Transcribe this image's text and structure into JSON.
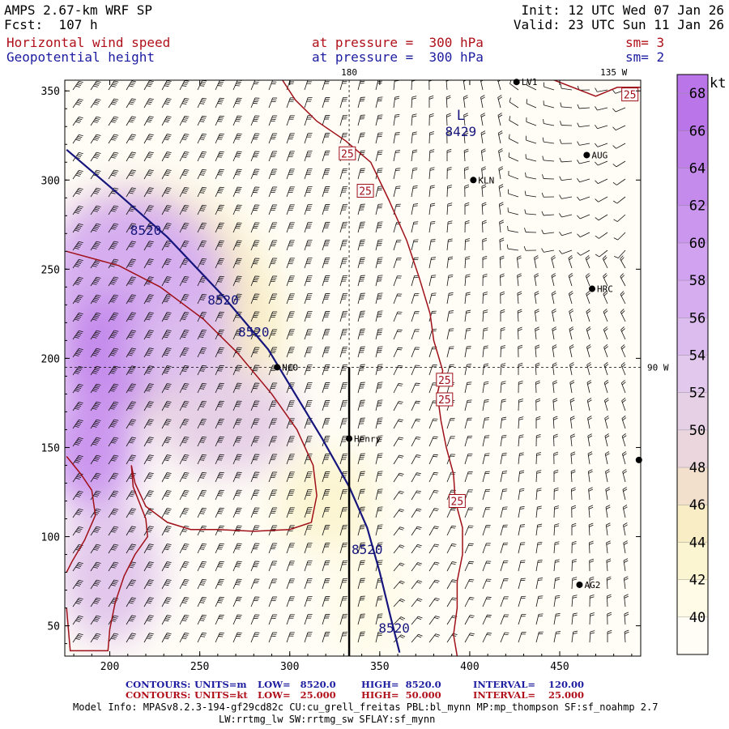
{
  "header": {
    "model_title": "AMPS 2.67-km WRF SP",
    "forecast": "Fcst:  107 h",
    "init": "Init: 12 UTC Wed 07 Jan 26",
    "valid": "Valid: 23 UTC Sun 11 Jan 26",
    "field1_name": "Horizontal wind speed",
    "field1_level": "at pressure =  300 hPa",
    "field1_sm": "sm= 3",
    "field2_name": "Geopotential height",
    "field2_level": "at pressure =  300 hPa",
    "field2_sm": "sm= 2"
  },
  "colors": {
    "height_contour": "#16167e",
    "speed_contour": "#a01018",
    "barb": "#111111",
    "marker": "#000000"
  },
  "chart_data": {
    "type": "contour-map",
    "x_ticks": [
      200,
      250,
      300,
      350,
      400,
      450
    ],
    "y_ticks": [
      50,
      100,
      150,
      200,
      250,
      300,
      350
    ],
    "xlim": [
      175,
      495
    ],
    "ylim": [
      33,
      356
    ],
    "meridian_labels": [
      {
        "text": "180",
        "x": 333,
        "y": 356,
        "edge": "top"
      },
      {
        "text": "135 W",
        "x": 480,
        "y": 356,
        "edge": "top"
      },
      {
        "text": "90 W",
        "x": 495,
        "y": 195,
        "edge": "right"
      }
    ],
    "stations": [
      {
        "name": "NCO",
        "x": 293,
        "y": 195
      },
      {
        "name": "Henry",
        "x": 333,
        "y": 155
      },
      {
        "name": "KLN",
        "x": 402,
        "y": 300
      },
      {
        "name": "AUG",
        "x": 465,
        "y": 314
      },
      {
        "name": "HRC",
        "x": 468,
        "y": 239
      },
      {
        "name": "AG2",
        "x": 461,
        "y": 73
      },
      {
        "name": "LV1",
        "x": 426,
        "y": 355
      },
      {
        "name": "",
        "x": 494,
        "y": 143
      }
    ],
    "low_center": {
      "symbol": "L",
      "value": "8429",
      "x": 395,
      "y": 331
    },
    "height_contours": [
      {
        "value": 8520,
        "points": [
          [
            176,
            317
          ],
          [
            205,
            292
          ],
          [
            232,
            268
          ],
          [
            262,
            236
          ],
          [
            288,
            205
          ],
          [
            303,
            180
          ],
          [
            318,
            155
          ],
          [
            333,
            128
          ],
          [
            343,
            105
          ],
          [
            350,
            80
          ],
          [
            356,
            55
          ],
          [
            361,
            35
          ]
        ]
      }
    ],
    "height_labels": [
      {
        "text": "8520",
        "x": 220,
        "y": 272
      },
      {
        "text": "8520",
        "x": 263,
        "y": 233
      },
      {
        "text": "8520",
        "x": 280,
        "y": 215
      },
      {
        "text": "8520",
        "x": 343,
        "y": 93
      },
      {
        "text": "8520",
        "x": 358,
        "y": 49
      }
    ],
    "speed_contours": [
      {
        "value": 25,
        "points": [
          [
            296,
            356
          ],
          [
            303,
            345
          ],
          [
            315,
            333
          ],
          [
            331,
            322
          ],
          [
            345,
            310
          ],
          [
            355,
            289
          ],
          [
            365,
            266
          ],
          [
            372,
            245
          ],
          [
            378,
            225
          ],
          [
            380,
            210
          ],
          [
            385,
            193
          ],
          [
            382,
            180
          ],
          [
            384,
            165
          ],
          [
            387,
            150
          ],
          [
            391,
            135
          ],
          [
            392,
            120
          ],
          [
            396,
            105
          ],
          [
            396,
            90
          ],
          [
            393,
            75
          ],
          [
            393,
            60
          ],
          [
            391,
            45
          ],
          [
            393,
            33
          ]
        ]
      },
      {
        "value": 50,
        "points": [
          [
            176,
            260
          ],
          [
            205,
            252
          ],
          [
            228,
            240
          ],
          [
            252,
            222
          ],
          [
            271,
            203
          ],
          [
            290,
            180
          ],
          [
            304,
            160
          ],
          [
            313,
            140
          ],
          [
            315,
            123
          ],
          [
            312,
            108
          ],
          [
            300,
            104
          ],
          [
            280,
            103
          ],
          [
            260,
            104
          ],
          [
            245,
            104
          ],
          [
            232,
            108
          ],
          [
            220,
            117
          ],
          [
            214,
            130
          ],
          [
            212,
            140
          ],
          [
            213,
            128
          ],
          [
            220,
            110
          ],
          [
            221,
            100
          ],
          [
            214,
            90
          ],
          [
            208,
            78
          ],
          [
            203,
            63
          ],
          [
            200,
            48
          ],
          [
            199,
            36
          ],
          [
            178,
            36
          ],
          [
            176,
            60
          ]
        ]
      },
      {
        "value": 25,
        "points": [
          [
            176,
            145
          ],
          [
            184,
            135
          ],
          [
            190,
            126
          ],
          [
            192,
            112
          ],
          [
            186,
            98
          ],
          [
            179,
            86
          ],
          [
            176,
            80
          ]
        ]
      },
      {
        "value": 25,
        "points": [
          [
            447,
            356
          ],
          [
            470,
            347
          ],
          [
            482,
            352
          ],
          [
            495,
            352
          ]
        ]
      }
    ],
    "speed_labels": [
      {
        "text": "25",
        "x": 332,
        "y": 315
      },
      {
        "text": "25",
        "x": 342,
        "y": 294
      },
      {
        "text": "25",
        "x": 386,
        "y": 188
      },
      {
        "text": "25",
        "x": 386,
        "y": 177
      },
      {
        "text": "25",
        "x": 393,
        "y": 120
      },
      {
        "text": "25",
        "x": 489,
        "y": 348
      }
    ],
    "shading_legend": {
      "unit": "kt",
      "levels": [
        40,
        42,
        44,
        46,
        48,
        50,
        52,
        54,
        56,
        58,
        60,
        62,
        64,
        66,
        68
      ],
      "colors": [
        "#fffdf6",
        "#fffbe6",
        "#fcf5d2",
        "#f8edc4",
        "#f2e0cc",
        "#ead6dc",
        "#e6d0e6",
        "#e2c8ec",
        "#dcbcee",
        "#d6aeef",
        "#d0a2ef",
        "#ca96ee",
        "#c48aec",
        "#bf80ea",
        "#ba76e8"
      ]
    },
    "shading_blobs": [
      {
        "cx": 230,
        "cy": 230,
        "rx": 60,
        "ry": 75,
        "rot": -40,
        "level": 3
      },
      {
        "cx": 215,
        "cy": 240,
        "rx": 50,
        "ry": 55,
        "rot": -40,
        "level": 9
      },
      {
        "cx": 200,
        "cy": 200,
        "rx": 30,
        "ry": 35,
        "rot": 0,
        "level": 12
      },
      {
        "cx": 240,
        "cy": 205,
        "rx": 30,
        "ry": 26,
        "rot": 0,
        "level": 8
      },
      {
        "cx": 265,
        "cy": 165,
        "rx": 40,
        "ry": 30,
        "rot": 0,
        "level": 6
      },
      {
        "cx": 190,
        "cy": 150,
        "rx": 25,
        "ry": 35,
        "rot": 0,
        "level": 11
      },
      {
        "cx": 200,
        "cy": 80,
        "rx": 28,
        "ry": 40,
        "rot": 0,
        "level": 7
      },
      {
        "cx": 320,
        "cy": 120,
        "rx": 28,
        "ry": 28,
        "rot": 0,
        "level": 2
      },
      {
        "cx": 342,
        "cy": 66,
        "rx": 20,
        "ry": 34,
        "rot": 0,
        "level": 1
      }
    ]
  },
  "footer": {
    "contours_height_label": "CONTOURS:",
    "contours_height_units": "UNITS=m",
    "contours_height_low": "LOW=   8520.0",
    "contours_height_high": "HIGH=  8520.0",
    "contours_height_interval": "INTERVAL=    120.00",
    "contours_speed_label": "CONTOURS:",
    "contours_speed_units": "UNITS=kt",
    "contours_speed_low": "LOW=   25.000",
    "contours_speed_high": "HIGH=  50.000",
    "contours_speed_interval": "INTERVAL=    25.000",
    "model_info_1": "Model Info: MPASv8.2.3-194-gf29cd82c CU:cu_grell_freitas PBL:bl_mynn MP:mp_thompson SF:sf_noahmp 2.7",
    "model_info_2": "LW:rrtmg_lw SW:rrtmg_sw SFLAY:sf_mynn"
  }
}
